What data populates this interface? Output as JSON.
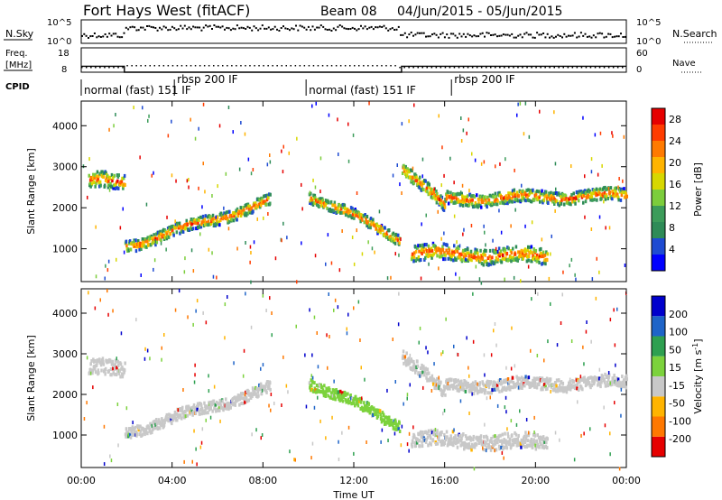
{
  "header": {
    "radar": "Fort Hays West (fitACF)",
    "beam": "Beam 08",
    "date_range": "04/Jun/2015 - 05/Jun/2015"
  },
  "strips": {
    "nsky_label": "N.Sky",
    "nsearch_label": "N.Search",
    "freq_label_1": "Freq.",
    "freq_label_2": "[MHz]",
    "nave_label": "Nave",
    "cpid_label": "CPID",
    "left_ticks_top": [
      "10^5",
      "10^0"
    ],
    "right_ticks_top": [
      "10^5",
      "10^0"
    ],
    "left_ticks_freq": [
      "18",
      "8"
    ],
    "right_ticks_freq": [
      "60",
      "0"
    ],
    "cpid_segments": [
      {
        "label": "normal (fast) 151 IF",
        "start": 0.0,
        "end": 4.1
      },
      {
        "label": "rbsp 200 IF",
        "start": 4.1,
        "end": 9.9
      },
      {
        "label": "normal (fast) 151 IF",
        "start": 9.9,
        "end": 16.3
      },
      {
        "label": "rbsp 200 IF",
        "start": 16.3,
        "end": 21.9
      }
    ]
  },
  "chart_data": [
    {
      "type": "heatmap",
      "title": "",
      "ylabel": "Slant Range [km]",
      "xlabel": "",
      "x_ticks": [
        "00:00",
        "04:00",
        "08:00",
        "12:00",
        "16:00",
        "20:00",
        "00:00"
      ],
      "xlim": [
        0,
        24
      ],
      "y_ticks": [
        1000,
        2000,
        3000,
        4000
      ],
      "ylim": [
        200,
        4600
      ],
      "colorbar": {
        "label": "Power [dB]",
        "ticks": [
          4,
          8,
          12,
          16,
          20,
          24,
          28
        ],
        "range": [
          0,
          30
        ],
        "colors": [
          "#0000ff",
          "#1e4bd2",
          "#2e8b57",
          "#3c9c5a",
          "#7ccd3c",
          "#d7d700",
          "#ffb400",
          "#ff7a00",
          "#ff3c00",
          "#e60000"
        ]
      },
      "scatter_bands": [
        {
          "start": 0.3,
          "end": 1.9,
          "center_start": 2650,
          "center_end": 2600,
          "width": 380
        },
        {
          "start": 1.9,
          "end": 8.3,
          "center_start": 1050,
          "center_end": 2150,
          "width": 280
        },
        {
          "start": 10.0,
          "end": 14.0,
          "center_start": 2300,
          "center_end": 1250,
          "width": 260
        },
        {
          "start": 14.1,
          "end": 16.0,
          "center_start": 3000,
          "center_end": 2000,
          "width": 320
        },
        {
          "start": 16.0,
          "end": 24.0,
          "center_start": 2200,
          "center_end": 2300,
          "width": 300
        },
        {
          "start": 14.5,
          "end": 20.5,
          "center_start": 900,
          "center_end": 800,
          "width": 380
        }
      ]
    },
    {
      "type": "heatmap",
      "title": "",
      "ylabel": "Slant Range [km]",
      "xlabel": "Time UT",
      "x_ticks": [
        "00:00",
        "04:00",
        "08:00",
        "12:00",
        "16:00",
        "20:00",
        "00:00"
      ],
      "xlim": [
        0,
        24
      ],
      "y_ticks": [
        1000,
        2000,
        3000,
        4000
      ],
      "ylim": [
        200,
        4600
      ],
      "colorbar": {
        "label": "Velocity [m s^-1]",
        "ticks": [
          200,
          100,
          50,
          15,
          -15,
          -50,
          -100,
          -200
        ],
        "colors": [
          "#0000cc",
          "#1e64c8",
          "#2ea050",
          "#7cd23c",
          "#c8c8c8",
          "#ffb400",
          "#ff7800",
          "#e60000"
        ]
      }
    }
  ]
}
